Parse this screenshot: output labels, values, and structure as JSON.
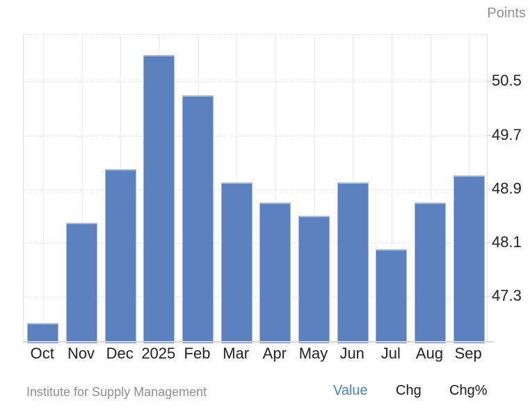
{
  "header": {
    "y_axis_title": "Points"
  },
  "footer": {
    "source": "Institute for Supply Management",
    "tabs": [
      {
        "label": "Value",
        "active": true
      },
      {
        "label": "Chg",
        "active": false
      },
      {
        "label": "Chg%",
        "active": false
      }
    ]
  },
  "colors": {
    "bar_fill": "#5b80be",
    "bar_border": "#a5badd",
    "grid": "#e3e3e3",
    "axis": "#d8d8d8",
    "label_dark": "#222222",
    "label_gray": "#8f8f8f",
    "link_blue": "#4a80c9"
  },
  "chart_data": {
    "type": "bar",
    "title": "",
    "xlabel": "",
    "ylabel": "Points",
    "categories": [
      "Oct",
      "Nov",
      "Dec",
      "2025",
      "Feb",
      "Mar",
      "Apr",
      "May",
      "Jun",
      "Jul",
      "Aug",
      "Sep"
    ],
    "values": [
      46.9,
      48.4,
      49.2,
      50.9,
      50.3,
      49.0,
      48.7,
      48.5,
      49.0,
      48.0,
      48.7,
      49.1
    ],
    "yticks": [
      50.5,
      49.7,
      48.9,
      48.1,
      47.3
    ],
    "ylim": [
      46.6,
      51.2
    ],
    "grid": true,
    "legend": "none",
    "source": "Institute for Supply Management"
  }
}
